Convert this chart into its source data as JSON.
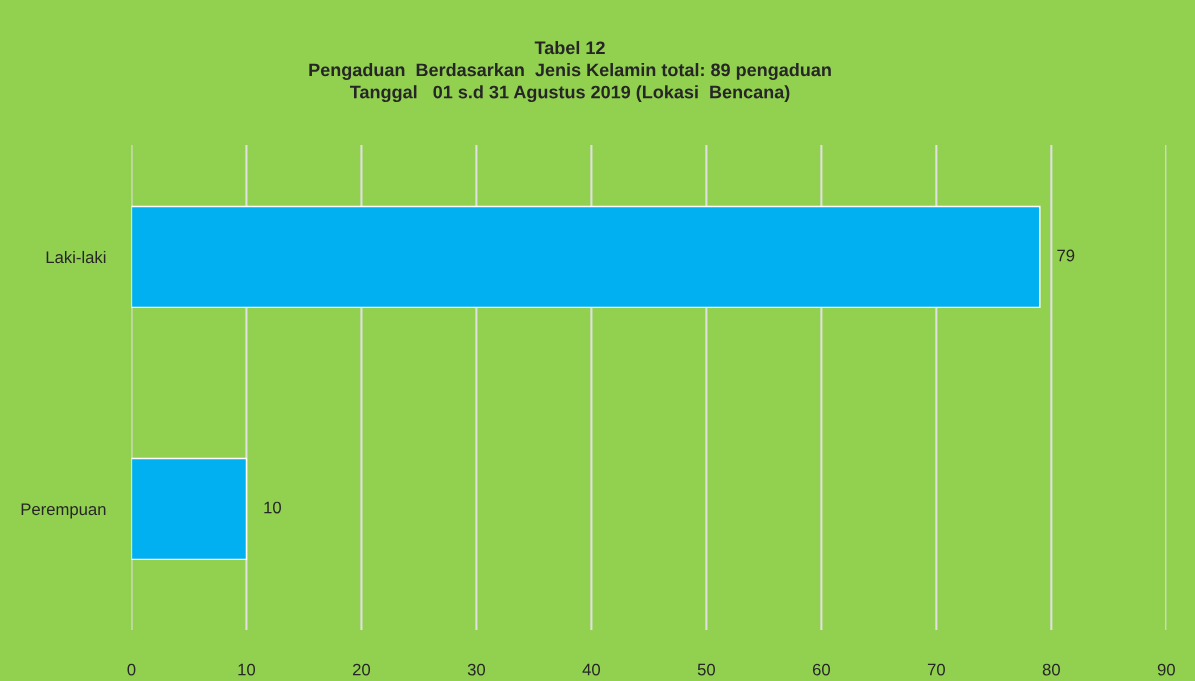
{
  "chart_data": {
    "type": "bar",
    "orientation": "horizontal",
    "title": "Tabel 12\nPengaduan  Berdasarkan  Jenis Kelamin total: 89 pengaduan\nTanggal   01 s.d 31 Agustus 2019 (Lokasi  Bencana)",
    "categories": [
      "Laki-laki",
      "Perempuan"
    ],
    "values": [
      79,
      10
    ],
    "color": "#00b0f0",
    "xlim": [
      0,
      90
    ],
    "xticks": [
      0,
      10,
      20,
      30,
      40,
      50,
      60,
      70,
      80,
      90
    ],
    "grid": "x",
    "data_labels": true
  }
}
